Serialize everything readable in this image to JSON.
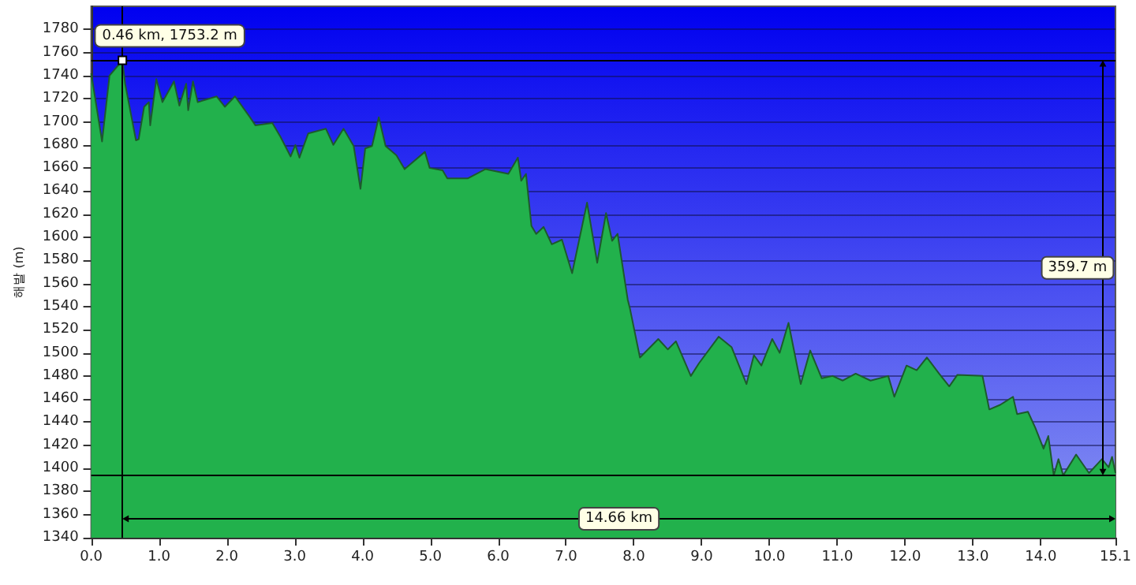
{
  "chart_data": {
    "type": "area",
    "ylabel": "해발 (m)",
    "color": "#22b14c",
    "grid": "y",
    "marker": "none",
    "x": [
      0,
      0.16,
      0.27,
      0.46,
      0.5,
      0.66,
      0.7,
      0.78,
      0.85,
      0.87,
      0.96,
      1.05,
      1.22,
      1.3,
      1.4,
      1.43,
      1.5,
      1.57,
      1.85,
      1.97,
      2.12,
      2.34,
      2.42,
      2.67,
      2.79,
      2.94,
      3.01,
      3.07,
      3.2,
      3.46,
      3.57,
      3.72,
      3.87,
      3.97,
      4.04,
      4.14,
      4.24,
      4.34,
      4.5,
      4.62,
      4.92,
      4.99,
      5.18,
      5.25,
      5.55,
      5.81,
      6.15,
      6.29,
      6.34,
      6.41,
      6.49,
      6.56,
      6.67,
      6.79,
      6.94,
      7.09,
      7.31,
      7.46,
      7.59,
      7.68,
      7.76,
      7.91,
      7.94,
      8.09,
      8.36,
      8.5,
      8.62,
      8.84,
      8.96,
      9.25,
      9.44,
      9.66,
      9.77,
      9.88,
      10.04,
      10.15,
      10.28,
      10.46,
      10.6,
      10.77,
      10.93,
      11.08,
      11.27,
      11.49,
      11.75,
      11.84,
      12.02,
      12.17,
      12.32,
      12.5,
      12.65,
      12.77,
      13.14,
      13.24,
      13.4,
      13.59,
      13.65,
      13.81,
      13.92,
      14.04,
      14.11,
      14.19,
      14.26,
      14.33,
      14.52,
      14.71,
      14.9,
      15.0,
      15.05,
      15.1
    ],
    "values": [
      1742,
      1683,
      1740,
      1753.2,
      1733,
      1684,
      1685,
      1713,
      1717,
      1697,
      1737,
      1717,
      1735,
      1714,
      1733,
      1710,
      1735,
      1717,
      1722,
      1713,
      1722,
      1704,
      1697,
      1699,
      1687,
      1670,
      1680,
      1669,
      1690,
      1694,
      1680,
      1694,
      1679,
      1642,
      1677,
      1679,
      1704,
      1679,
      1671,
      1659,
      1674,
      1660,
      1658,
      1651,
      1651,
      1659,
      1655,
      1669,
      1649,
      1655,
      1610,
      1603,
      1609,
      1594,
      1598,
      1569,
      1630,
      1578,
      1621,
      1597,
      1603,
      1546,
      1539,
      1496,
      1512,
      1503,
      1510,
      1480,
      1491,
      1514,
      1505,
      1473,
      1498,
      1489,
      1512,
      1500,
      1526,
      1473,
      1502,
      1478,
      1480,
      1476,
      1482,
      1476,
      1480,
      1462,
      1489,
      1485,
      1496,
      1482,
      1471,
      1481,
      1480,
      1451,
      1455,
      1462,
      1447,
      1449,
      1435,
      1417,
      1428,
      1394,
      1408,
      1394,
      1412,
      1396,
      1408,
      1401,
      1410,
      1396
    ],
    "xlim": [
      0,
      15.1
    ],
    "xticks": [
      {
        "value": 0,
        "label": "0.0"
      },
      {
        "value": 1,
        "label": "1.0"
      },
      {
        "value": 2,
        "label": "2.0"
      },
      {
        "value": 3,
        "label": "3.0"
      },
      {
        "value": 4,
        "label": "4.0"
      },
      {
        "value": 5,
        "label": "5.0"
      },
      {
        "value": 6,
        "label": "6.0"
      },
      {
        "value": 7,
        "label": "7.0"
      },
      {
        "value": 8,
        "label": "8.0"
      },
      {
        "value": 9,
        "label": "9.0"
      },
      {
        "value": 10,
        "label": "10.0"
      },
      {
        "value": 11,
        "label": "11.0"
      },
      {
        "value": 12,
        "label": "12.0"
      },
      {
        "value": 13,
        "label": "13.0"
      },
      {
        "value": 14,
        "label": "14.0"
      },
      15.1
    ],
    "ylim": [
      1340,
      1800
    ],
    "yticks": [
      1340,
      1360,
      1380,
      1400,
      1420,
      1440,
      1460,
      1480,
      1500,
      1520,
      1540,
      1560,
      1580,
      1600,
      1620,
      1640,
      1660,
      1680,
      1700,
      1720,
      1740,
      1760,
      1780
    ],
    "ref_lines": [
      {
        "axis": "x",
        "value": 0.46
      },
      {
        "axis": "y",
        "value": 1753.2
      },
      {
        "axis": "y",
        "value": 1394
      }
    ],
    "annotations": [
      {
        "text": "0.46 km, 1753.2 m",
        "x": 0.46,
        "y": 1753.2
      },
      "359.7 m",
      "14.66 km"
    ]
  }
}
